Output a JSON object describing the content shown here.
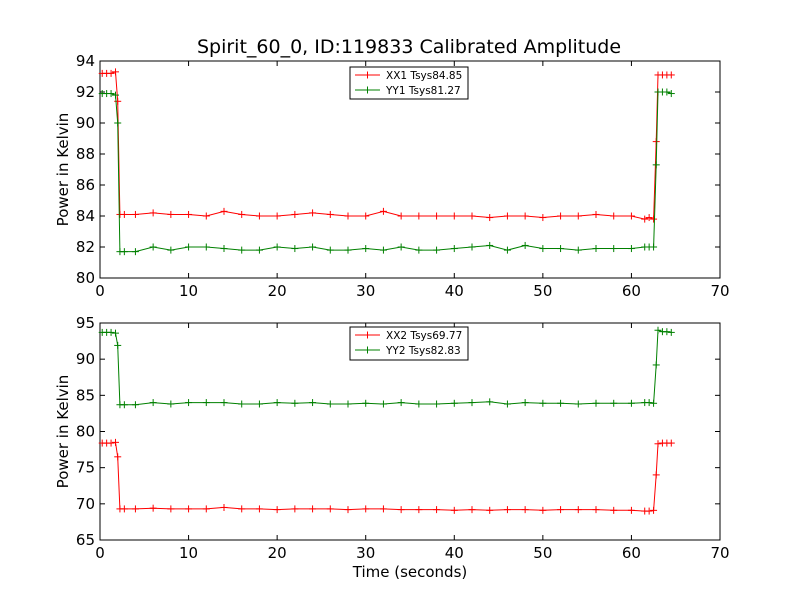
{
  "figure": {
    "title": "Spirit_60_0, ID:119833 Calibrated Amplitude"
  },
  "chart_data": [
    {
      "type": "line",
      "title": "Spirit_60_0, ID:119833 Calibrated Amplitude",
      "xlabel": "",
      "ylabel": "Power in Kelvin",
      "xlim": [
        0,
        70
      ],
      "ylim": [
        80,
        94
      ],
      "xticks": [
        0,
        10,
        20,
        30,
        40,
        50,
        60,
        70
      ],
      "yticks": [
        80,
        82,
        84,
        86,
        88,
        90,
        92,
        94
      ],
      "legend_position": "top-center",
      "series": [
        {
          "name": "XX1 Tsys84.85",
          "color": "#ff0000",
          "marker": "plus",
          "x": [
            0.25,
            0.75,
            1.25,
            1.75,
            2.0,
            2.25,
            2.75,
            4.0,
            6.0,
            8.0,
            10.0,
            12.0,
            14.0,
            16.0,
            18.0,
            20.0,
            22.0,
            24.0,
            26.0,
            28.0,
            30.0,
            32.0,
            34.0,
            36.0,
            38.0,
            40.0,
            42.0,
            44.0,
            46.0,
            48.0,
            50.0,
            52.0,
            54.0,
            56.0,
            58.0,
            60.0,
            61.5,
            62.0,
            62.5,
            62.8,
            63.0,
            63.5,
            64.0,
            64.5
          ],
          "y": [
            93.2,
            93.2,
            93.2,
            93.3,
            91.4,
            84.1,
            84.1,
            84.1,
            84.2,
            84.1,
            84.1,
            84.0,
            84.3,
            84.1,
            84.0,
            84.0,
            84.1,
            84.2,
            84.1,
            84.0,
            84.0,
            84.3,
            84.0,
            84.0,
            84.0,
            84.0,
            84.0,
            83.9,
            84.0,
            84.0,
            83.9,
            84.0,
            84.0,
            84.1,
            84.0,
            84.0,
            83.8,
            83.9,
            83.8,
            88.8,
            93.1,
            93.1,
            93.1,
            93.1
          ]
        },
        {
          "name": "YY1 Tsys81.27",
          "color": "#008000",
          "marker": "plus",
          "x": [
            0.25,
            0.75,
            1.25,
            1.75,
            2.0,
            2.25,
            2.75,
            4.0,
            6.0,
            8.0,
            10.0,
            12.0,
            14.0,
            16.0,
            18.0,
            20.0,
            22.0,
            24.0,
            26.0,
            28.0,
            30.0,
            32.0,
            34.0,
            36.0,
            38.0,
            40.0,
            42.0,
            44.0,
            46.0,
            48.0,
            50.0,
            52.0,
            54.0,
            56.0,
            58.0,
            60.0,
            61.5,
            62.0,
            62.5,
            62.8,
            63.0,
            63.5,
            64.0,
            64.5
          ],
          "y": [
            91.9,
            91.9,
            91.9,
            91.8,
            90.0,
            81.7,
            81.7,
            81.7,
            82.0,
            81.8,
            82.0,
            82.0,
            81.9,
            81.8,
            81.8,
            82.0,
            81.9,
            82.0,
            81.8,
            81.8,
            81.9,
            81.8,
            82.0,
            81.8,
            81.8,
            81.9,
            82.0,
            82.1,
            81.8,
            82.1,
            81.9,
            81.9,
            81.8,
            81.9,
            81.9,
            81.9,
            82.0,
            82.0,
            82.0,
            87.3,
            92.0,
            92.0,
            92.0,
            91.9
          ]
        }
      ]
    },
    {
      "type": "line",
      "title": "",
      "xlabel": "Time (seconds)",
      "ylabel": "Power in Kelvin",
      "xlim": [
        0,
        70
      ],
      "ylim": [
        65,
        95
      ],
      "xticks": [
        0,
        10,
        20,
        30,
        40,
        50,
        60,
        70
      ],
      "yticks": [
        65,
        70,
        75,
        80,
        85,
        90,
        95
      ],
      "legend_position": "top-center",
      "series": [
        {
          "name": "XX2 Tsys69.77",
          "color": "#ff0000",
          "marker": "plus",
          "x": [
            0.25,
            0.75,
            1.25,
            1.75,
            2.0,
            2.25,
            2.75,
            4.0,
            6.0,
            8.0,
            10.0,
            12.0,
            14.0,
            16.0,
            18.0,
            20.0,
            22.0,
            24.0,
            26.0,
            28.0,
            30.0,
            32.0,
            34.0,
            36.0,
            38.0,
            40.0,
            42.0,
            44.0,
            46.0,
            48.0,
            50.0,
            52.0,
            54.0,
            56.0,
            58.0,
            60.0,
            61.5,
            62.0,
            62.5,
            62.8,
            63.0,
            63.5,
            64.0,
            64.5
          ],
          "y": [
            78.4,
            78.4,
            78.4,
            78.5,
            76.5,
            69.3,
            69.3,
            69.3,
            69.4,
            69.3,
            69.3,
            69.3,
            69.5,
            69.3,
            69.3,
            69.2,
            69.3,
            69.3,
            69.3,
            69.2,
            69.3,
            69.3,
            69.2,
            69.2,
            69.2,
            69.1,
            69.2,
            69.1,
            69.2,
            69.2,
            69.1,
            69.2,
            69.2,
            69.2,
            69.1,
            69.1,
            69.0,
            69.0,
            69.1,
            74.0,
            78.3,
            78.4,
            78.4,
            78.4
          ]
        },
        {
          "name": "YY2 Tsys82.83",
          "color": "#008000",
          "marker": "plus",
          "x": [
            0.25,
            0.75,
            1.25,
            1.75,
            2.0,
            2.25,
            2.75,
            4.0,
            6.0,
            8.0,
            10.0,
            12.0,
            14.0,
            16.0,
            18.0,
            20.0,
            22.0,
            24.0,
            26.0,
            28.0,
            30.0,
            32.0,
            34.0,
            36.0,
            38.0,
            40.0,
            42.0,
            44.0,
            46.0,
            48.0,
            50.0,
            52.0,
            54.0,
            56.0,
            58.0,
            60.0,
            61.5,
            62.0,
            62.5,
            62.8,
            63.0,
            63.5,
            64.0,
            64.5
          ],
          "y": [
            93.7,
            93.7,
            93.7,
            93.6,
            91.9,
            83.7,
            83.7,
            83.7,
            84.0,
            83.8,
            84.0,
            84.0,
            84.0,
            83.8,
            83.8,
            84.0,
            83.9,
            84.0,
            83.8,
            83.8,
            83.9,
            83.8,
            84.0,
            83.8,
            83.8,
            83.9,
            84.0,
            84.1,
            83.8,
            84.0,
            83.9,
            83.9,
            83.8,
            83.9,
            83.9,
            83.9,
            84.0,
            84.0,
            83.9,
            89.2,
            94.0,
            93.8,
            93.8,
            93.7
          ]
        }
      ]
    }
  ]
}
